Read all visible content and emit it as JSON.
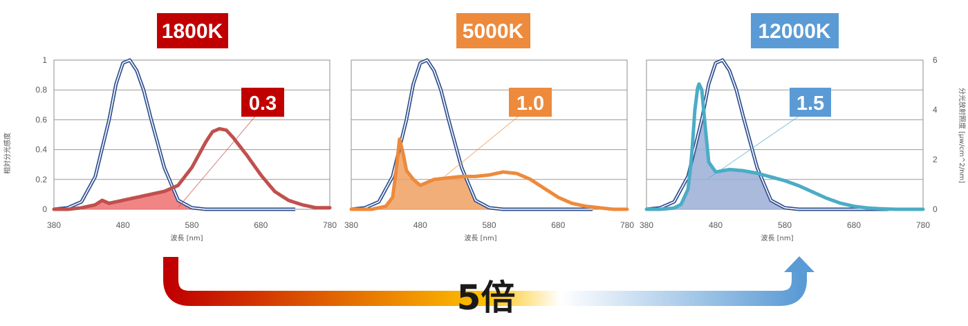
{
  "chart_data": [
    {
      "type": "area",
      "badge": {
        "text": "1800K",
        "color": "#c00000"
      },
      "ratio_label": {
        "text": "0.3",
        "color": "#c00000"
      },
      "xlabel": "波長 [nm]",
      "ylabel_left": "相対分光感度",
      "xlim": [
        380,
        780
      ],
      "xticks": [
        "380",
        "480",
        "580",
        "680",
        "780"
      ],
      "ylim": [
        0,
        1
      ],
      "yticks": [
        "0",
        "0.2",
        "0.4",
        "0.6",
        "0.8",
        "1"
      ],
      "grid": true,
      "series": [
        {
          "role": "sensitivity",
          "color": "#2f4f8f",
          "x": [
            380,
            400,
            420,
            440,
            460,
            470,
            480,
            490,
            500,
            510,
            520,
            540,
            560,
            580,
            600,
            620,
            640,
            660,
            680,
            700,
            730
          ],
          "y": [
            0.0,
            0.01,
            0.05,
            0.22,
            0.6,
            0.84,
            0.98,
            1.0,
            0.93,
            0.8,
            0.62,
            0.28,
            0.06,
            0.01,
            0.0,
            0.0,
            0.0,
            0.0,
            0.0,
            0.0,
            0.0
          ]
        },
        {
          "role": "spectrum",
          "color": "#c0504d",
          "fill": "#ef6f6f",
          "x": [
            380,
            400,
            420,
            440,
            450,
            455,
            460,
            470,
            480,
            500,
            520,
            540,
            560,
            580,
            600,
            610,
            620,
            630,
            640,
            660,
            680,
            700,
            720,
            740,
            760,
            780
          ],
          "y": [
            0.0,
            0.0,
            0.01,
            0.03,
            0.06,
            0.05,
            0.04,
            0.05,
            0.06,
            0.08,
            0.1,
            0.12,
            0.16,
            0.28,
            0.45,
            0.52,
            0.54,
            0.53,
            0.48,
            0.36,
            0.23,
            0.12,
            0.06,
            0.03,
            0.01,
            0.01
          ]
        }
      ]
    },
    {
      "type": "area",
      "badge": {
        "text": "5000K",
        "color": "#ed8a3c"
      },
      "ratio_label": {
        "text": "1.0",
        "color": "#ed8a3c"
      },
      "xlabel": "波長 [nm]",
      "xlim": [
        380,
        780
      ],
      "xticks": [
        "380",
        "480",
        "580",
        "680",
        "780"
      ],
      "ylim": [
        0,
        1
      ],
      "grid": true,
      "series": [
        {
          "role": "sensitivity",
          "color": "#2f4f8f",
          "x": [
            380,
            400,
            420,
            440,
            460,
            470,
            480,
            490,
            500,
            510,
            520,
            540,
            560,
            580,
            600,
            620,
            640,
            660,
            680,
            700,
            730
          ],
          "y": [
            0.0,
            0.01,
            0.05,
            0.22,
            0.6,
            0.84,
            0.98,
            1.0,
            0.93,
            0.8,
            0.62,
            0.28,
            0.06,
            0.01,
            0.0,
            0.0,
            0.0,
            0.0,
            0.0,
            0.0,
            0.0
          ]
        },
        {
          "role": "spectrum",
          "color": "#ed8a3c",
          "fill": "#f0a060",
          "x": [
            380,
            410,
            430,
            440,
            445,
            450,
            455,
            460,
            470,
            480,
            500,
            520,
            540,
            560,
            580,
            600,
            620,
            640,
            660,
            680,
            700,
            720,
            740,
            760,
            780
          ],
          "y": [
            0.0,
            0.0,
            0.02,
            0.08,
            0.25,
            0.47,
            0.38,
            0.26,
            0.2,
            0.16,
            0.2,
            0.21,
            0.22,
            0.22,
            0.23,
            0.25,
            0.24,
            0.2,
            0.14,
            0.08,
            0.04,
            0.02,
            0.01,
            0.0,
            0.0
          ]
        }
      ]
    },
    {
      "type": "area",
      "badge": {
        "text": "12000K",
        "color": "#5b9bd5"
      },
      "ratio_label": {
        "text": "1.5",
        "color": "#5b9bd5"
      },
      "xlabel": "波長 [nm]",
      "ylabel_right": "分光放射照度 [μw/cm^2/nm]",
      "xlim": [
        380,
        780
      ],
      "xticks": [
        "380",
        "480",
        "580",
        "680",
        "780"
      ],
      "ylim": [
        0,
        6
      ],
      "yticks_right": [
        "0",
        "2",
        "4",
        "6"
      ],
      "grid": true,
      "series": [
        {
          "role": "sensitivity",
          "color": "#2f4f8f",
          "x": [
            380,
            400,
            420,
            440,
            460,
            470,
            480,
            490,
            500,
            510,
            520,
            540,
            560,
            580,
            600,
            620,
            640,
            660,
            680,
            700,
            730
          ],
          "y": [
            0.0,
            0.01,
            0.05,
            0.22,
            0.6,
            0.84,
            0.98,
            1.0,
            0.93,
            0.8,
            0.62,
            0.28,
            0.06,
            0.01,
            0.0,
            0.0,
            0.0,
            0.0,
            0.0,
            0.0,
            0.0
          ]
        },
        {
          "role": "spectrum",
          "color": "#4bacc6",
          "fill": "#9aaed6",
          "x": [
            380,
            400,
            420,
            430,
            440,
            445,
            450,
            455,
            460,
            465,
            470,
            480,
            500,
            520,
            540,
            560,
            580,
            600,
            620,
            640,
            660,
            680,
            700,
            720,
            740,
            760,
            780
          ],
          "y": [
            0.0,
            0.0,
            0.05,
            0.2,
            0.8,
            2.0,
            4.0,
            5.1,
            4.8,
            3.3,
            1.9,
            1.5,
            1.6,
            1.55,
            1.45,
            1.3,
            1.15,
            0.95,
            0.7,
            0.45,
            0.25,
            0.12,
            0.05,
            0.02,
            0.0,
            0.0,
            0.0
          ]
        }
      ]
    }
  ],
  "arrow": {
    "label": "5倍",
    "start_color": "#c00000",
    "mid_color": "#ffc000",
    "end_color": "#5b9bd5"
  }
}
